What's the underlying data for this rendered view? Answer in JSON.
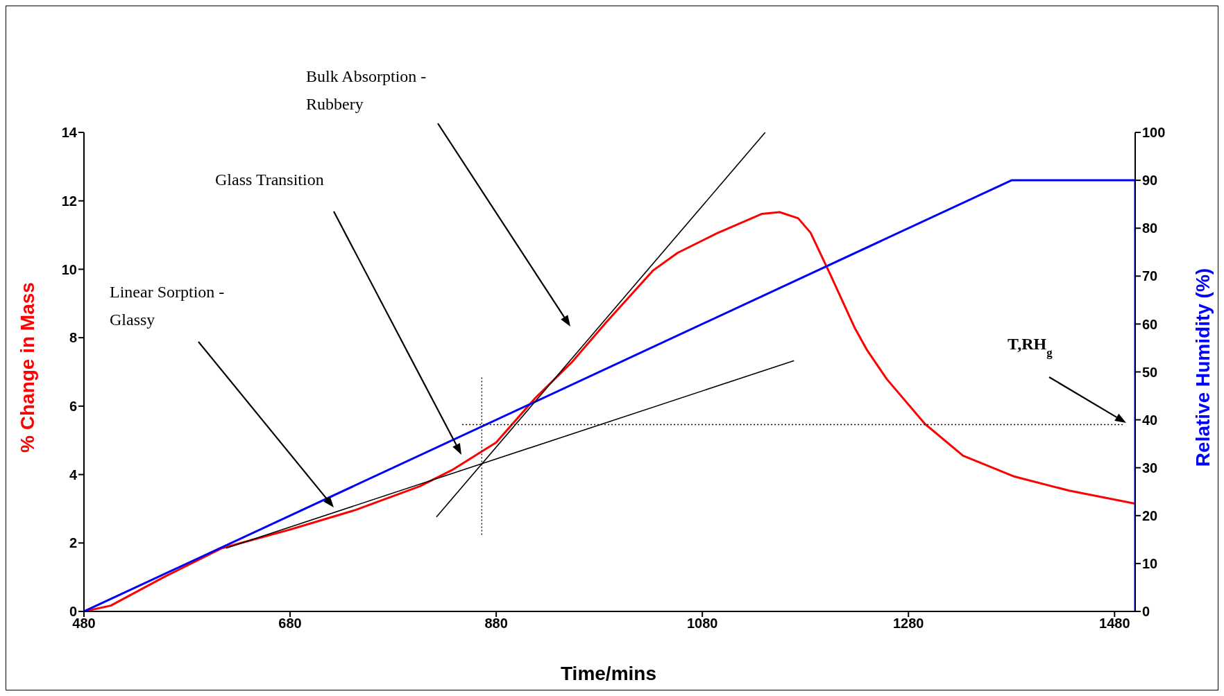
{
  "chart_data": {
    "type": "line",
    "xlabel": "Time/mins",
    "ylabel": "% Change in Mass",
    "y2label": "Relative Humidity (%)",
    "xlim": [
      480,
      1500
    ],
    "xticks": [
      480,
      680,
      880,
      1080,
      1280,
      1480
    ],
    "ylim": [
      0,
      14
    ],
    "yticks": [
      0,
      2,
      4,
      6,
      8,
      10,
      12,
      14
    ],
    "y2lim": [
      0,
      100
    ],
    "y2ticks": [
      0,
      10,
      20,
      30,
      40,
      50,
      60,
      70,
      80,
      90,
      100
    ],
    "marker": "none",
    "annotations": [
      "Linear Sorption - Glassy",
      "Glass Transition",
      "Bulk Absorption - Rubbery",
      "T,RH$_{g}$"
    ],
    "series": [
      {
        "axis": "y",
        "color": "#ff0000",
        "line_style": "solid",
        "x": [
          480,
          506,
          558,
          614,
          682,
          744,
          806,
          837,
          880,
          918,
          953,
          987,
          1032,
          1056,
          1094,
          1138,
          1155,
          1173,
          1185,
          1204,
          1228,
          1240,
          1259,
          1296,
          1333,
          1383,
          1436,
          1500
        ],
        "values": [
          0,
          0.17,
          1.01,
          1.85,
          2.41,
          2.97,
          3.66,
          4.13,
          4.94,
          6.24,
          7.27,
          8.46,
          9.96,
          10.48,
          11.05,
          11.62,
          11.67,
          11.49,
          11.07,
          9.86,
          8.28,
          7.63,
          6.79,
          5.48,
          4.55,
          3.94,
          3.53,
          3.15
        ]
      },
      {
        "axis": "y2",
        "color": "#0000ff",
        "line_style": "solid",
        "x": [
          480,
          1380,
          1500,
          1500
        ],
        "values": [
          0,
          90,
          90,
          0
        ]
      },
      {
        "axis": "y",
        "color": "#000000",
        "line_style": "solid",
        "x": [
          822,
          1141
        ],
        "values": [
          2.76,
          14
        ]
      },
      {
        "axis": "y",
        "color": "#000000",
        "line_style": "solid",
        "x": [
          618,
          1169
        ],
        "values": [
          1.85,
          7.33
        ]
      },
      {
        "axis": "y",
        "color": "#000000",
        "line_style": "dotted",
        "x": [
          866,
          866
        ],
        "values": [
          2.24,
          6.9
        ]
      },
      {
        "axis": "y2",
        "color": "#000000",
        "line_style": "dotted",
        "x": [
          847,
          1489
        ],
        "values": [
          39,
          39
        ]
      }
    ]
  }
}
